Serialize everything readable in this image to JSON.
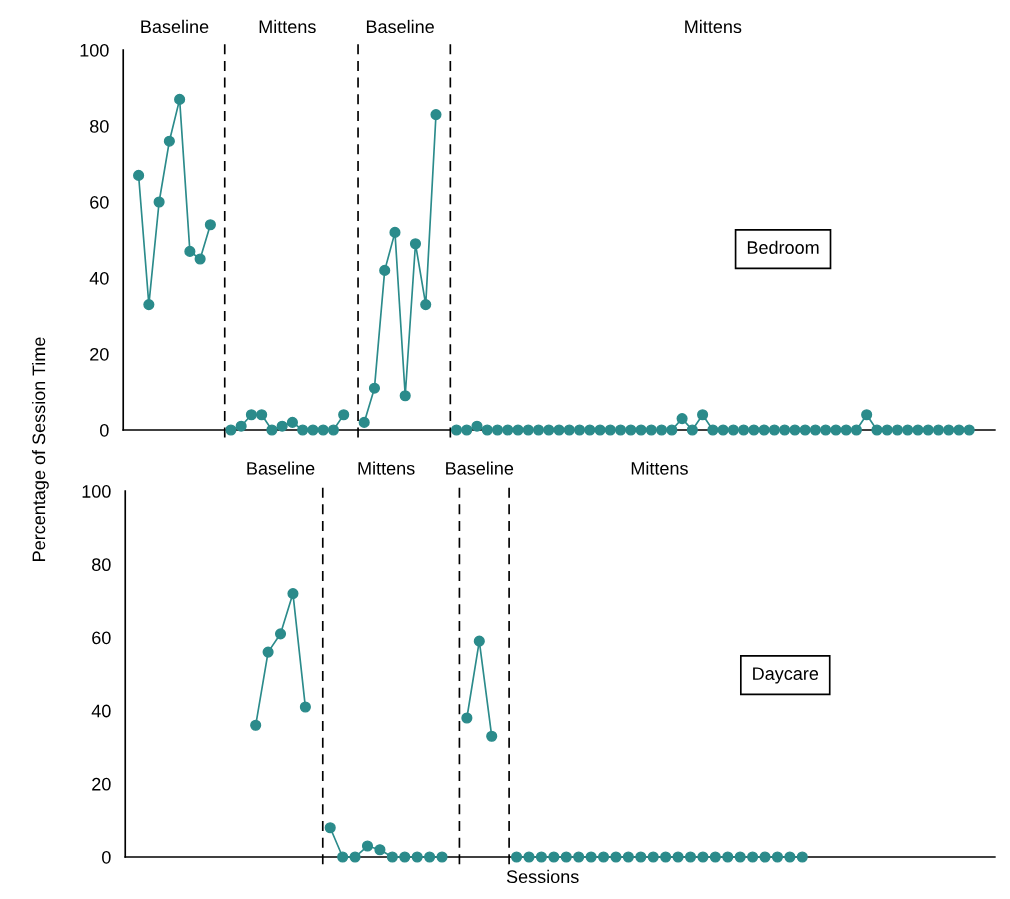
{
  "chart_data": [
    {
      "type": "line",
      "ylabel": "Percentage of Session Time",
      "annotations": [
        "Baseline",
        "Mittens",
        "Baseline",
        "Mittens",
        "Bedroom"
      ],
      "marker": "circle",
      "line_style": "solid",
      "grid": false,
      "legend": false,
      "tick_labels": "y",
      "ylim": [
        0,
        100
      ],
      "yticks": [
        0,
        20,
        40,
        60,
        80,
        100
      ],
      "categories": [
        null,
        null,
        null,
        null,
        null,
        null,
        null,
        null,
        null,
        null,
        null,
        null,
        null,
        null,
        null,
        null,
        null,
        null,
        null,
        null,
        null,
        null,
        null,
        null,
        null,
        null,
        null,
        null,
        null,
        null,
        null,
        null,
        null,
        null,
        null,
        null,
        null,
        null,
        null,
        null,
        null,
        null,
        null,
        null,
        null,
        null,
        null,
        null,
        null,
        null,
        null,
        null,
        null,
        null,
        null,
        null,
        null,
        null,
        null,
        null,
        null,
        null,
        null,
        null,
        null,
        null,
        null,
        null,
        null,
        null,
        null,
        null,
        null,
        null,
        null,
        null,
        null,
        null,
        null,
        null,
        null,
        null,
        null,
        null,
        null
      ],
      "series": [
        {
          "color": "#2b8b8b",
          "values": [
            null,
            67,
            33,
            60,
            76,
            87,
            47,
            45,
            54,
            null,
            null,
            null,
            null,
            null,
            null,
            null,
            null,
            null,
            null,
            null,
            null,
            null,
            null,
            null,
            null,
            null,
            null,
            null,
            null,
            null,
            null,
            null,
            null,
            null,
            null,
            null,
            null,
            null,
            null,
            null,
            null,
            null,
            null,
            null,
            null,
            null,
            null,
            null,
            null,
            null,
            null,
            null,
            null,
            null,
            null,
            null,
            null,
            null,
            null,
            null,
            null,
            null,
            null,
            null,
            null,
            null,
            null,
            null,
            null,
            null,
            null,
            null,
            null,
            null,
            null,
            null,
            null,
            null,
            null,
            null,
            null,
            null,
            null,
            null,
            null
          ]
        },
        {
          "color": "#2b8b8b",
          "values": [
            null,
            null,
            null,
            null,
            null,
            null,
            null,
            null,
            null,
            null,
            0,
            1,
            4,
            4,
            0,
            1,
            2,
            0,
            0,
            0,
            0,
            4,
            null,
            null,
            null,
            null,
            null,
            null,
            null,
            null,
            null,
            null,
            null,
            null,
            null,
            null,
            null,
            null,
            null,
            null,
            null,
            null,
            null,
            null,
            null,
            null,
            null,
            null,
            null,
            null,
            null,
            null,
            null,
            null,
            null,
            null,
            null,
            null,
            null,
            null,
            null,
            null,
            null,
            null,
            null,
            null,
            null,
            null,
            null,
            null,
            null,
            null,
            null,
            null,
            null,
            null,
            null,
            null,
            null,
            null,
            null,
            null,
            null,
            null,
            null
          ]
        },
        {
          "color": "#2b8b8b",
          "values": [
            null,
            null,
            null,
            null,
            null,
            null,
            null,
            null,
            null,
            null,
            null,
            null,
            null,
            null,
            null,
            null,
            null,
            null,
            null,
            null,
            null,
            null,
            null,
            2,
            11,
            42,
            52,
            9,
            49,
            33,
            83,
            null,
            null,
            null,
            null,
            null,
            null,
            null,
            null,
            null,
            null,
            null,
            null,
            null,
            null,
            null,
            null,
            null,
            null,
            null,
            null,
            null,
            null,
            null,
            null,
            null,
            null,
            null,
            null,
            null,
            null,
            null,
            null,
            null,
            null,
            null,
            null,
            null,
            null,
            null,
            null,
            null,
            null,
            null,
            null,
            null,
            null,
            null,
            null,
            null,
            null,
            null,
            null,
            null,
            null
          ]
        },
        {
          "color": "#2b8b8b",
          "values": [
            null,
            null,
            null,
            null,
            null,
            null,
            null,
            null,
            null,
            null,
            null,
            null,
            null,
            null,
            null,
            null,
            null,
            null,
            null,
            null,
            null,
            null,
            null,
            null,
            null,
            null,
            null,
            null,
            null,
            null,
            null,
            null,
            0,
            0,
            1,
            0,
            0,
            0,
            0,
            0,
            0,
            0,
            0,
            0,
            0,
            0,
            0,
            0,
            0,
            0,
            0,
            0,
            0,
            0,
            3,
            0,
            4,
            0,
            0,
            0,
            0,
            0,
            0,
            0,
            0,
            0,
            0,
            0,
            0,
            0,
            0,
            0,
            4,
            0,
            0,
            0,
            0,
            0,
            0,
            0,
            0,
            0,
            0,
            null,
            null
          ]
        }
      ]
    },
    {
      "type": "line",
      "xlabel": "Sessions",
      "annotations": [
        "Baseline",
        "Mittens",
        "Baseline",
        "Mittens",
        "Daycare"
      ],
      "marker": "circle",
      "line_style": "solid",
      "grid": false,
      "legend": false,
      "tick_labels": "y",
      "ylim": [
        0,
        100
      ],
      "yticks": [
        0,
        20,
        40,
        60,
        80,
        100
      ],
      "categories": [
        null,
        null,
        null,
        null,
        null,
        null,
        null,
        null,
        null,
        null,
        null,
        null,
        null,
        null,
        null,
        null,
        null,
        null,
        null,
        null,
        null,
        null,
        null,
        null,
        null,
        null,
        null,
        null,
        null,
        null,
        null,
        null,
        null,
        null,
        null,
        null,
        null,
        null,
        null,
        null,
        null,
        null,
        null,
        null,
        null,
        null,
        null,
        null,
        null,
        null,
        null,
        null,
        null,
        null,
        null,
        null,
        null,
        null,
        null,
        null,
        null,
        null,
        null,
        null,
        null,
        null,
        null,
        null,
        null,
        null
      ],
      "series": [
        {
          "color": "#2b8b8b",
          "values": [
            null,
            null,
            null,
            null,
            null,
            null,
            null,
            null,
            null,
            null,
            36,
            56,
            61,
            72,
            41,
            null,
            null,
            null,
            null,
            null,
            null,
            null,
            null,
            null,
            null,
            null,
            null,
            null,
            null,
            null,
            null,
            null,
            null,
            null,
            null,
            null,
            null,
            null,
            null,
            null,
            null,
            null,
            null,
            null,
            null,
            null,
            null,
            null,
            null,
            null,
            null,
            null,
            null,
            null,
            null,
            null,
            null,
            null,
            null,
            null,
            null,
            null,
            null,
            null,
            null,
            null,
            null,
            null,
            null,
            null
          ]
        },
        {
          "color": "#2b8b8b",
          "values": [
            null,
            null,
            null,
            null,
            null,
            null,
            null,
            null,
            null,
            null,
            null,
            null,
            null,
            null,
            null,
            null,
            8,
            0,
            0,
            3,
            2,
            0,
            0,
            0,
            0,
            0,
            null,
            null,
            null,
            null,
            null,
            null,
            null,
            null,
            null,
            null,
            null,
            null,
            null,
            null,
            null,
            null,
            null,
            null,
            null,
            null,
            null,
            null,
            null,
            null,
            null,
            null,
            null,
            null,
            null,
            null,
            null,
            null,
            null,
            null,
            null,
            null,
            null,
            null,
            null,
            null,
            null,
            null,
            null,
            null
          ]
        },
        {
          "color": "#2b8b8b",
          "values": [
            null,
            null,
            null,
            null,
            null,
            null,
            null,
            null,
            null,
            null,
            null,
            null,
            null,
            null,
            null,
            null,
            null,
            null,
            null,
            null,
            null,
            null,
            null,
            null,
            null,
            null,
            null,
            38,
            59,
            33,
            null,
            null,
            null,
            null,
            null,
            null,
            null,
            null,
            null,
            null,
            null,
            null,
            null,
            null,
            null,
            null,
            null,
            null,
            null,
            null,
            null,
            null,
            null,
            null,
            null,
            null,
            null,
            null,
            null,
            null,
            null,
            null,
            null,
            null,
            null,
            null,
            null,
            null,
            null,
            null
          ]
        },
        {
          "color": "#2b8b8b",
          "values": [
            null,
            null,
            null,
            null,
            null,
            null,
            null,
            null,
            null,
            null,
            null,
            null,
            null,
            null,
            null,
            null,
            null,
            null,
            null,
            null,
            null,
            null,
            null,
            null,
            null,
            null,
            null,
            null,
            null,
            null,
            null,
            0,
            0,
            0,
            0,
            0,
            0,
            0,
            0,
            0,
            0,
            0,
            0,
            0,
            0,
            0,
            0,
            0,
            0,
            0,
            0,
            0,
            0,
            0,
            0,
            null,
            null,
            null,
            null,
            null,
            null,
            null,
            null,
            null,
            null,
            null,
            null,
            null,
            null,
            null
          ]
        }
      ]
    }
  ]
}
